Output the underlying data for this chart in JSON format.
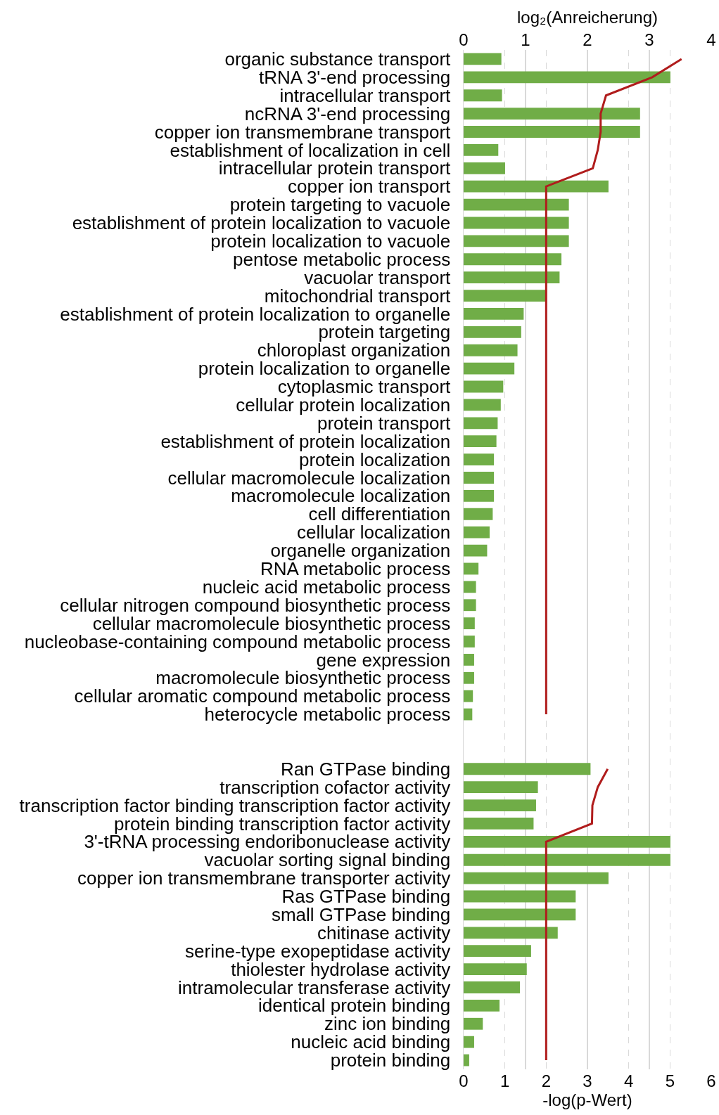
{
  "chart_data": {
    "type": "bar",
    "orientation": "horizontal",
    "xlabel": "log₂(Anreicherung)",
    "xlim": [
      0,
      4
    ],
    "xticks": [
      0,
      1,
      2,
      3,
      4
    ],
    "x2label": "-log(p-Wert)",
    "x2lim": [
      0,
      6
    ],
    "x2ticks": [
      0,
      1,
      2,
      3,
      4,
      5,
      6
    ],
    "grid": true,
    "categories": [
      "organic substance transport",
      "tRNA 3'-end processing",
      "intracellular transport",
      "ncRNA 3'-end processing",
      "copper ion transmembrane transport",
      "establishment of localization in cell",
      "intracellular protein transport",
      "copper ion transport",
      "protein targeting to vacuole",
      "establishment of protein localization to vacuole",
      "protein localization to vacuole",
      "pentose metabolic process",
      "vacuolar transport",
      "mitochondrial transport",
      "establishment of protein localization to organelle",
      "protein targeting",
      "chloroplast organization",
      "protein localization to organelle",
      "cytoplasmic transport",
      "cellular protein localization",
      "protein transport",
      "establishment of protein localization",
      "protein localization",
      "cellular macromolecule localization",
      "macromolecule localization",
      "cell differentiation",
      "cellular localization",
      "organelle organization",
      "RNA metabolic process",
      "nucleic acid metabolic process",
      "cellular nitrogen compound biosynthetic process",
      "cellular macromolecule biosynthetic process",
      "nucleobase-containing compound metabolic process",
      "gene expression",
      "macromolecule biosynthetic process",
      "cellular aromatic compound metabolic process",
      "heterocycle metabolic process",
      null,
      null,
      "Ran GTPase binding",
      "transcription cofactor activity",
      "transcription factor binding transcription factor activity",
      "protein binding transcription factor activity",
      "3'-tRNA processing endoribonuclease activity",
      "vacuolar sorting signal binding",
      "copper ion transmembrane transporter activity",
      "Ras GTPase binding",
      "small GTPase binding",
      "chitinase activity",
      "serine-type exopeptidase activity",
      "thiolester hydrolase activity",
      "intramolecular transferase activity",
      "identical protein binding",
      "zinc ion binding",
      "nucleic acid binding",
      "protein binding"
    ],
    "series": [
      {
        "color": "#70ad47",
        "values": [
          0.61,
          3.34,
          0.62,
          2.85,
          2.85,
          0.56,
          0.67,
          2.34,
          1.7,
          1.7,
          1.7,
          1.58,
          1.55,
          1.32,
          0.97,
          0.93,
          0.87,
          0.82,
          0.64,
          0.6,
          0.55,
          0.53,
          0.49,
          0.49,
          0.49,
          0.47,
          0.42,
          0.38,
          0.24,
          0.2,
          0.2,
          0.18,
          0.18,
          0.17,
          0.17,
          0.15,
          0.14,
          null,
          null,
          2.05,
          1.2,
          1.17,
          1.13,
          3.34,
          3.34,
          2.34,
          1.81,
          1.81,
          1.52,
          1.09,
          1.02,
          0.91,
          0.58,
          0.31,
          0.17,
          0.09
        ]
      },
      {
        "type": "line",
        "axis": "x2",
        "color": "#b01c1c",
        "values": [
          5.28,
          4.57,
          3.45,
          3.32,
          3.32,
          3.25,
          3.13,
          2,
          2,
          2,
          2,
          2,
          2,
          2,
          2,
          2,
          2,
          2,
          2,
          2,
          2,
          2,
          2,
          2,
          2,
          2,
          2,
          2,
          2,
          2,
          2,
          2,
          2,
          2,
          2,
          2,
          2,
          null,
          null,
          3.49,
          3.25,
          3.12,
          3.11,
          2,
          2,
          2,
          2,
          2,
          2,
          2,
          2,
          2,
          2,
          2,
          2,
          2
        ]
      }
    ]
  }
}
